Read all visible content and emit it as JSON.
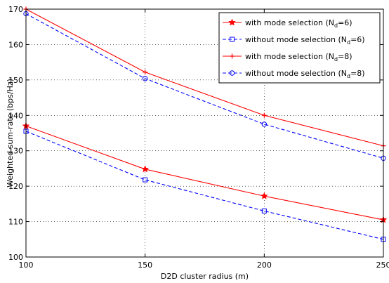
{
  "chart_data": {
    "type": "line",
    "title": "",
    "xlabel": "D2D cluster radius (m)",
    "ylabel": "Weighted sum-rate (bps/Hz)",
    "xlim": [
      100,
      250
    ],
    "ylim": [
      100,
      170
    ],
    "xticks": [
      100,
      150,
      200,
      250
    ],
    "yticks": [
      100,
      110,
      120,
      130,
      140,
      150,
      160,
      170
    ],
    "grid": true,
    "legend_position": "top-right",
    "x": [
      100,
      150,
      200,
      250
    ],
    "series": [
      {
        "name": "with mode selection (N_d=6)",
        "legend_main": "with mode selection (N",
        "legend_sub": "d",
        "legend_tail": "=6)",
        "values": [
          137,
          124.8,
          117.2,
          110.5
        ],
        "color": "#ff0000",
        "dash": "solid",
        "marker": "star"
      },
      {
        "name": "without mode selection (N_d=6)",
        "legend_main": "without mode selection (N",
        "legend_sub": "d",
        "legend_tail": "=6)",
        "values": [
          135.5,
          121.8,
          113,
          105
        ],
        "color": "#0000ff",
        "dash": "dashed",
        "marker": "square"
      },
      {
        "name": "with mode selection (N_d=8)",
        "legend_main": "with mode selection (N",
        "legend_sub": "d",
        "legend_tail": "=8)",
        "values": [
          170,
          152.2,
          140,
          131.4
        ],
        "color": "#ff0000",
        "dash": "solid",
        "marker": "plus"
      },
      {
        "name": "without mode selection (N_d=8)",
        "legend_main": "without mode selection (N",
        "legend_sub": "d",
        "legend_tail": "=8)",
        "values": [
          168.7,
          150.4,
          137.5,
          127.9
        ],
        "color": "#0000ff",
        "dash": "dashed",
        "marker": "circle"
      }
    ]
  }
}
